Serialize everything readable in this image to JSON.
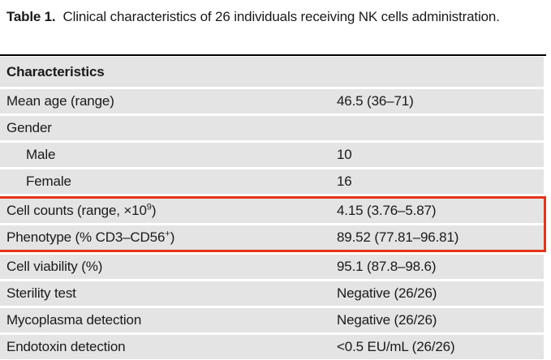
{
  "title": {
    "label": "Table 1.",
    "caption": "Clinical characteristics of 26 individuals receiving NK cells administration."
  },
  "table": {
    "header": "Characteristics",
    "rows": [
      {
        "section": "before",
        "indent": false,
        "label_parts": [
          {
            "t": "Mean age (range)"
          }
        ],
        "value": "46.5 (36–71)"
      },
      {
        "section": "before",
        "indent": false,
        "label_parts": [
          {
            "t": "Gender"
          }
        ],
        "value": ""
      },
      {
        "section": "before",
        "indent": true,
        "label_parts": [
          {
            "t": "Male"
          }
        ],
        "value": "10"
      },
      {
        "section": "before",
        "indent": true,
        "label_parts": [
          {
            "t": "Female"
          }
        ],
        "value": "16"
      },
      {
        "section": "highlight",
        "indent": false,
        "label_parts": [
          {
            "t": "Cell counts (range, ×10"
          },
          {
            "t": "9",
            "sup": true
          },
          {
            "t": ")"
          }
        ],
        "value": "4.15 (3.76–5.87)"
      },
      {
        "section": "highlight",
        "indent": false,
        "label_parts": [
          {
            "t": "Phenotype (% CD3–CD56"
          },
          {
            "t": "+",
            "sup": true
          },
          {
            "t": ")"
          }
        ],
        "value": "89.52 (77.81–96.81)"
      },
      {
        "section": "after",
        "indent": false,
        "label_parts": [
          {
            "t": "Cell viability (%)"
          }
        ],
        "value": "95.1 (87.8–98.6)"
      },
      {
        "section": "after",
        "indent": false,
        "label_parts": [
          {
            "t": "Sterility test"
          }
        ],
        "value": "Negative (26/26)"
      },
      {
        "section": "after",
        "indent": false,
        "label_parts": [
          {
            "t": "Mycoplasma detection"
          }
        ],
        "value": "Negative (26/26)"
      },
      {
        "section": "after",
        "indent": false,
        "label_parts": [
          {
            "t": "Endotoxin detection"
          }
        ],
        "value": "<0.5 EU/mL (26/26)"
      }
    ]
  },
  "annotation": {
    "type": "highlight-box",
    "rows_highlighted": [
      "Cell counts (range, ×10⁹)",
      "Phenotype (% CD3–CD56⁺)"
    ]
  },
  "colors": {
    "row_bg": "#e4e4e4",
    "highlight_border": "#e53418",
    "top_rule": "#000000",
    "text": "#1a1a1a"
  }
}
